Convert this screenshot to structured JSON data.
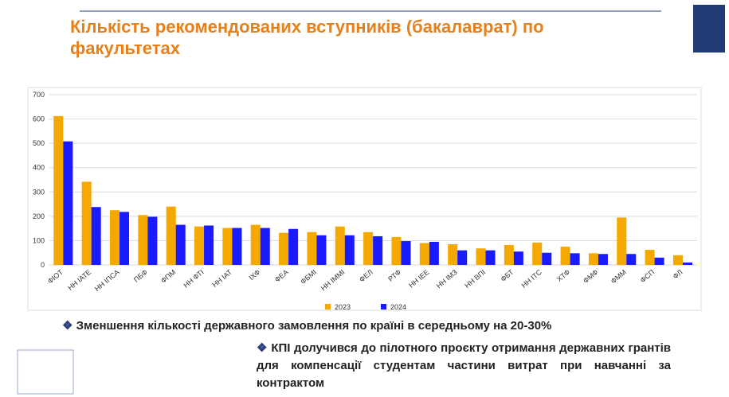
{
  "chart_data": {
    "type": "bar",
    "title": "Кількість рекомендованих вступників (бакалаврат) по факультетах",
    "categories": [
      "ФІОТ",
      "НН ІАТЕ",
      "НН ІПСА",
      "ПБФ",
      "ФПМ",
      "НН ФТІ",
      "НН ІАТ",
      "ІХФ",
      "ФЕА",
      "ФБМІ",
      "НН ІММІ",
      "ФЕЛ",
      "РТФ",
      "НН ІЕЕ",
      "НН ІМЗ",
      "НН ВПІ",
      "ФБТ",
      "НН ІТС",
      "ХТФ",
      "ФМФ",
      "ФММ",
      "ФСП",
      "ФЛ"
    ],
    "series": [
      {
        "name": "2023",
        "color": "#f5a800",
        "values": [
          612,
          342,
          225,
          205,
          240,
          158,
          152,
          165,
          132,
          135,
          158,
          135,
          115,
          90,
          85,
          68,
          82,
          92,
          75,
          48,
          195,
          62,
          40
        ]
      },
      {
        "name": "2024",
        "color": "#1a1aff",
        "values": [
          508,
          238,
          218,
          198,
          165,
          162,
          152,
          152,
          148,
          122,
          122,
          118,
          98,
          95,
          60,
          60,
          55,
          50,
          48,
          45,
          45,
          30,
          10
        ]
      }
    ],
    "ylim": [
      0,
      700
    ],
    "yticks": [
      0,
      100,
      200,
      300,
      400,
      500,
      600,
      700
    ],
    "grid": true,
    "legend": "bottom",
    "annotations": [
      "Зменшення кількості державного замовлення по країні в середньому на 20-30%",
      "КПІ долучився до пілотного проєкту отримання державних грантів для компенсації студентам частини витрат при навчанні за контрактом"
    ]
  }
}
